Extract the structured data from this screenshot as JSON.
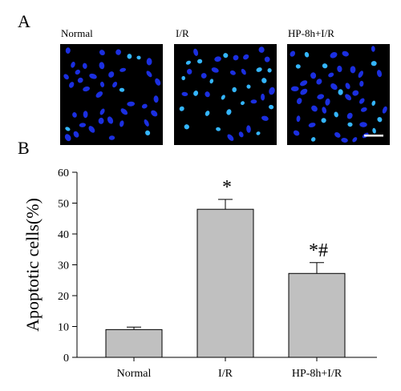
{
  "panel_a": {
    "letter": "A",
    "images": [
      {
        "label": "Normal",
        "cells": 42,
        "bright_fraction": 0.1
      },
      {
        "label": "I/R",
        "cells": 40,
        "bright_fraction": 0.45
      },
      {
        "label": "HP-8h+I/R",
        "cells": 48,
        "bright_fraction": 0.25
      }
    ],
    "colors": {
      "nucleus": "#1b2fe0",
      "bright_nucleus": "#34b6ff",
      "background": "#000000"
    }
  },
  "panel_b": {
    "letter": "B"
  },
  "chart_data": {
    "type": "bar",
    "categories": [
      "Normal",
      "I/R",
      "HP-8h+I/R"
    ],
    "values": [
      9,
      48,
      27.2
    ],
    "errors": [
      0.8,
      3.2,
      3.5
    ],
    "annotations": [
      "",
      "*",
      "*#"
    ],
    "ylabel": "Apoptotic cells(%)",
    "ylim": [
      0,
      60
    ],
    "yticks": [
      0,
      10,
      20,
      30,
      40,
      50,
      60
    ],
    "grid": false,
    "bar_color": "#c0c0c0"
  }
}
